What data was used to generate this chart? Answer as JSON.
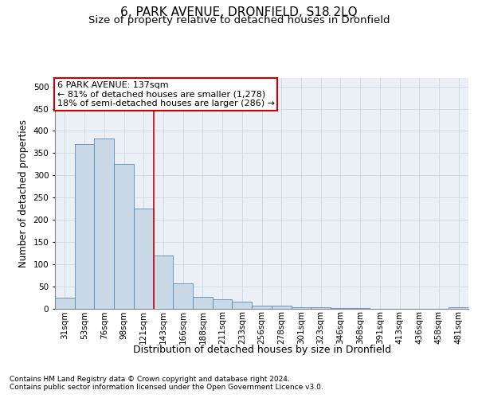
{
  "title": "6, PARK AVENUE, DRONFIELD, S18 2LQ",
  "subtitle": "Size of property relative to detached houses in Dronfield",
  "xlabel": "Distribution of detached houses by size in Dronfield",
  "ylabel": "Number of detached properties",
  "footnote1": "Contains HM Land Registry data © Crown copyright and database right 2024.",
  "footnote2": "Contains public sector information licensed under the Open Government Licence v3.0.",
  "categories": [
    "31sqm",
    "53sqm",
    "76sqm",
    "98sqm",
    "121sqm",
    "143sqm",
    "166sqm",
    "188sqm",
    "211sqm",
    "233sqm",
    "256sqm",
    "278sqm",
    "301sqm",
    "323sqm",
    "346sqm",
    "368sqm",
    "391sqm",
    "413sqm",
    "436sqm",
    "458sqm",
    "481sqm"
  ],
  "values": [
    25,
    370,
    383,
    326,
    225,
    120,
    57,
    26,
    20,
    16,
    7,
    6,
    2,
    2,
    1,
    1,
    0,
    0,
    0,
    0,
    3
  ],
  "bar_color": "#c9d9e8",
  "bar_edgecolor": "#5a8ab5",
  "grid_color": "#c8d4e0",
  "bg_color": "#eaf0f6",
  "annotation_line1": "6 PARK AVENUE: 137sqm",
  "annotation_line2": "← 81% of detached houses are smaller (1,278)",
  "annotation_line3": "18% of semi-detached houses are larger (286) →",
  "annotation_box_color": "#ffffff",
  "annotation_box_edgecolor": "#cc0000",
  "vline_color": "#cc0000",
  "vline_x": 4.5,
  "ylim": [
    0,
    520
  ],
  "yticks": [
    0,
    50,
    100,
    150,
    200,
    250,
    300,
    350,
    400,
    450,
    500
  ],
  "title_fontsize": 11,
  "subtitle_fontsize": 9.5,
  "ylabel_fontsize": 8.5,
  "xlabel_fontsize": 9,
  "tick_fontsize": 7.5,
  "annot_fontsize": 8,
  "footnote_fontsize": 6.5
}
